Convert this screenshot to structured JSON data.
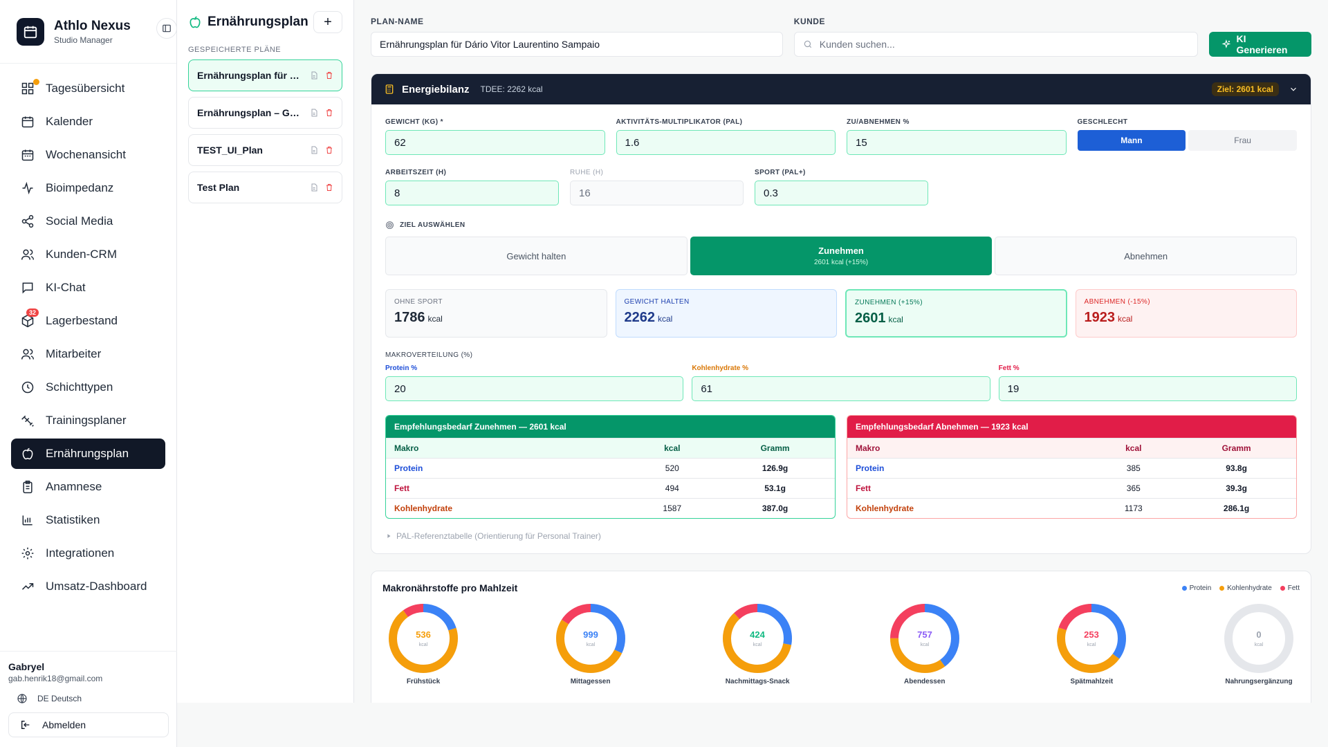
{
  "brand": {
    "name": "Athlo Nexus",
    "subtitle": "Studio Manager"
  },
  "nav": [
    {
      "label": "Tagesübersicht"
    },
    {
      "label": "Kalender"
    },
    {
      "label": "Wochenansicht"
    },
    {
      "label": "Bioimpedanz"
    },
    {
      "label": "Social Media"
    },
    {
      "label": "Kunden-CRM"
    },
    {
      "label": "KI-Chat"
    },
    {
      "label": "Lagerbestand",
      "badge": "32"
    },
    {
      "label": "Mitarbeiter"
    },
    {
      "label": "Schichttypen"
    },
    {
      "label": "Trainingsplaner"
    },
    {
      "label": "Ernährungsplan"
    },
    {
      "label": "Anamnese"
    },
    {
      "label": "Statistiken"
    },
    {
      "label": "Integrationen"
    },
    {
      "label": "Umsatz-Dashboard"
    }
  ],
  "user": {
    "name": "Gabryel",
    "email": "gab.henrik18@gmail.com",
    "language": "DE Deutsch",
    "logout": "Abmelden"
  },
  "plans": {
    "title": "Ernährungsplan",
    "add": "+",
    "section_label": "GESPEICHERTE PLÄNE",
    "items": [
      {
        "name": "Ernährungsplan für Dário Vitor Laurentino Sampaio"
      },
      {
        "name": "Ernährungsplan – Gabryel"
      },
      {
        "name": "TEST_UI_Plan"
      },
      {
        "name": "Test Plan"
      }
    ]
  },
  "form": {
    "plan_name_label": "PLAN-NAME",
    "plan_name_value": "Ernährungsplan für Dário Vitor Laurentino Sampaio",
    "customer_label": "KUNDE",
    "customer_placeholder": "Kunden suchen...",
    "ki_button": "KI Generieren"
  },
  "energy": {
    "title": "Energiebilanz",
    "tdee": "TDEE: 2262 kcal",
    "goal_pill": "Ziel: 2601 kcal",
    "fields": {
      "weight_label": "GEWICHT (KG) *",
      "weight": "62",
      "pal_label": "AKTIVITÄTS-MULTIPLIKATOR (PAL)",
      "pal": "1.6",
      "change_label": "ZU/ABNEHMEN %",
      "change": "15",
      "sex_label": "GESCHLECHT",
      "sex_male": "Mann",
      "sex_female": "Frau",
      "work_label": "ARBEITSZEIT (H)",
      "work": "8",
      "rest_label": "RUHE (H)",
      "rest": "16",
      "sport_label": "SPORT (PAL+)",
      "sport": "0.3"
    },
    "goal_select_label": "ZIEL AUSWÄHLEN",
    "goals": {
      "maintain": "Gewicht halten",
      "gain": "Zunehmen",
      "gain_sub": "2601 kcal (+15%)",
      "lose": "Abnehmen"
    },
    "kcal_boxes": {
      "no_sport": {
        "label": "OHNE SPORT",
        "value": "1786",
        "unit": "kcal"
      },
      "maintain": {
        "label": "GEWICHT HALTEN",
        "value": "2262",
        "unit": "kcal"
      },
      "gain": {
        "label": "ZUNEHMEN (+15%)",
        "value": "2601",
        "unit": "kcal"
      },
      "lose": {
        "label": "ABNEHMEN (-15%)",
        "value": "1923",
        "unit": "kcal"
      }
    },
    "macro_label": "MAKROVERTEILUNG (%)",
    "macros": {
      "protein_label": "Protein %",
      "protein": "20",
      "carbs_label": "Kohlenhydrate %",
      "carbs": "61",
      "fat_label": "Fett %",
      "fat": "19"
    },
    "table_gain": {
      "title": "Empfehlungsbedarf Zunehmen — 2601 kcal",
      "col_macro": "Makro",
      "col_kcal": "kcal",
      "col_gram": "Gramm",
      "rows": {
        "protein": {
          "name": "Protein",
          "kcal": "520",
          "gram": "126.9g"
        },
        "fat": {
          "name": "Fett",
          "kcal": "494",
          "gram": "53.1g"
        },
        "carbs": {
          "name": "Kohlenhydrate",
          "kcal": "1587",
          "gram": "387.0g"
        }
      }
    },
    "table_lose": {
      "title": "Empfehlungsbedarf Abnehmen — 1923 kcal",
      "col_macro": "Makro",
      "col_kcal": "kcal",
      "col_gram": "Gramm",
      "rows": {
        "protein": {
          "name": "Protein",
          "kcal": "385",
          "gram": "93.8g"
        },
        "fat": {
          "name": "Fett",
          "kcal": "365",
          "gram": "39.3g"
        },
        "carbs": {
          "name": "Kohlenhydrate",
          "kcal": "1173",
          "gram": "286.1g"
        }
      }
    },
    "pal_reference": "PAL-Referenztabelle (Orientierung für Personal Trainer)"
  },
  "meals": {
    "title": "Makronährstoffe pro Mahlzeit",
    "legend": {
      "protein": "Protein",
      "carbs": "Kohlenhydrate",
      "fat": "Fett"
    },
    "colors": {
      "protein": "#3b82f6",
      "carbs": "#f59e0b",
      "fat": "#f43f5e",
      "empty": "#e5e7eb"
    },
    "unit": "kcal",
    "items": [
      {
        "name": "Frühstück",
        "kcal": "536",
        "protein": 0.2,
        "carbs": 0.7,
        "fat": 0.1,
        "color": "#f59e0b"
      },
      {
        "name": "Mittagessen",
        "kcal": "999",
        "protein": 0.32,
        "carbs": 0.52,
        "fat": 0.16,
        "color": "#3b82f6"
      },
      {
        "name": "Nachmittags-Snack",
        "kcal": "424",
        "protein": 0.28,
        "carbs": 0.6,
        "fat": 0.12,
        "color": "#10b981"
      },
      {
        "name": "Abendessen",
        "kcal": "757",
        "protein": 0.4,
        "carbs": 0.35,
        "fat": 0.25,
        "color": "#8b5cf6"
      },
      {
        "name": "Spätmahlzeit",
        "kcal": "253",
        "protein": 0.35,
        "carbs": 0.45,
        "fat": 0.2,
        "color": "#f43f5e"
      },
      {
        "name": "Nahrungsergänzung",
        "kcal": "0",
        "protein": 0,
        "carbs": 0,
        "fat": 0,
        "color": "#9ca3af"
      }
    ]
  }
}
